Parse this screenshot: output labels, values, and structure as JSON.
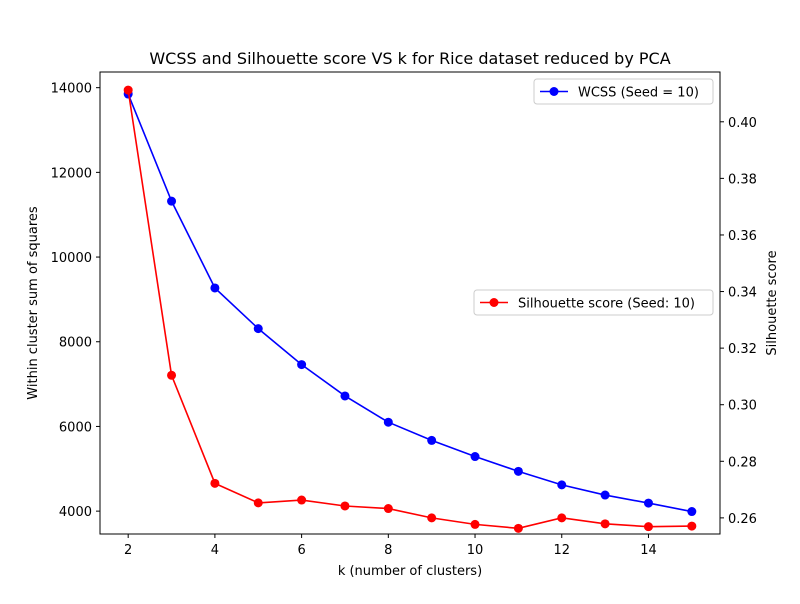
{
  "chart_data": {
    "type": "line",
    "title": "WCSS and Silhouette score VS k for Rice dataset reduced by PCA",
    "xlabel": "k (number of clusters)",
    "ylabel": "Within cluster sum of squares",
    "y2label": "Silhouette score",
    "x": [
      2,
      3,
      4,
      5,
      6,
      7,
      8,
      9,
      10,
      11,
      12,
      13,
      14,
      15
    ],
    "xlim": [
      1.35,
      15.65
    ],
    "ylim": [
      3460,
      14370
    ],
    "y2lim": [
      0.2543,
      0.4176
    ],
    "x_ticks": [
      "2",
      "4",
      "6",
      "8",
      "10",
      "12",
      "14"
    ],
    "y_ticks": [
      "4000",
      "6000",
      "8000",
      "10000",
      "12000",
      "14000"
    ],
    "y2_ticks": [
      "0.26",
      "0.28",
      "0.30",
      "0.32",
      "0.34",
      "0.36",
      "0.38",
      "0.40"
    ],
    "grid": false,
    "series": [
      {
        "name": "WCSS (Seed = 10)",
        "axis": "left",
        "color": "#0000ff",
        "legend_position": "top-right",
        "values": [
          13850,
          11320,
          9270,
          8310,
          7460,
          6720,
          6100,
          5670,
          5290,
          4940,
          4620,
          4380,
          4190,
          3990
        ]
      },
      {
        "name": "Silhouette score (Seed: 10)",
        "axis": "right",
        "color": "#ff0000",
        "legend_position": "center-right",
        "values": [
          0.4112,
          0.3104,
          0.2722,
          0.2653,
          0.2663,
          0.2642,
          0.2633,
          0.26,
          0.2577,
          0.2563,
          0.26,
          0.2579,
          0.2569,
          0.2571
        ]
      }
    ]
  }
}
